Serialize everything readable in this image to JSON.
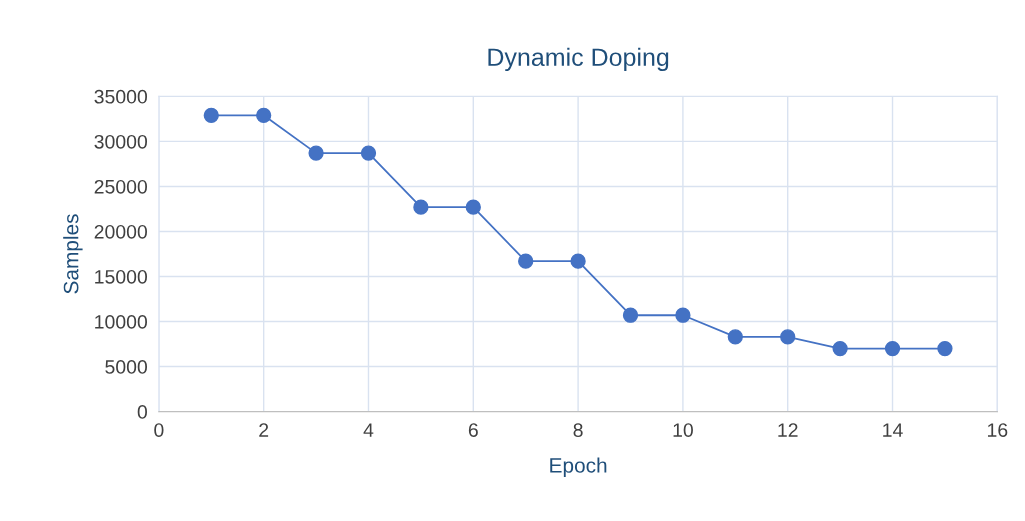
{
  "chart_data": {
    "type": "line",
    "title": "Dynamic Doping",
    "xlabel": "Epoch",
    "ylabel": "Samples",
    "x": [
      1,
      2,
      3,
      4,
      5,
      6,
      7,
      8,
      9,
      10,
      11,
      12,
      13,
      14,
      15
    ],
    "series": [
      {
        "color": "#4472c4",
        "values": [
          32900,
          32900,
          28700,
          28700,
          22700,
          22700,
          16700,
          16700,
          10700,
          10700,
          8300,
          8300,
          7000,
          7000,
          7000
        ]
      }
    ],
    "xlim": [
      0,
      16
    ],
    "xticks": [
      0,
      2,
      4,
      6,
      8,
      10,
      12,
      14,
      16
    ],
    "ylim": [
      0,
      35000
    ],
    "yticks": [
      0,
      5000,
      10000,
      15000,
      20000,
      25000,
      30000,
      35000
    ],
    "grid": true,
    "marker": "circle",
    "line_style": "solid",
    "legend": false
  }
}
